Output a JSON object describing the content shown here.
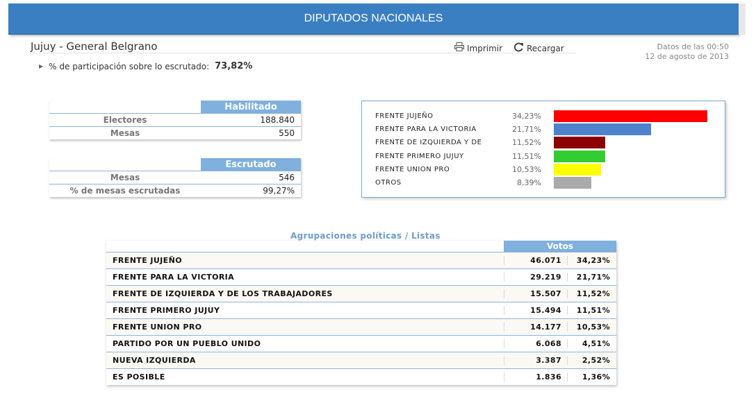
{
  "header": {
    "title": "DIPUTADOS NACIONALES"
  },
  "location": "Jujuy - General Belgrano",
  "toolbar": {
    "print_label": "Imprimir",
    "reload_label": "Recargar"
  },
  "timestamp": {
    "line1": "Datos de las 00:50",
    "line2": "12 de agosto de 2013"
  },
  "participation": {
    "label": "% de participación sobre lo escrutado:",
    "value": "73,82%"
  },
  "habilitado": {
    "header": "Habilitado",
    "rows": [
      {
        "label": "Electores",
        "value": "188.840"
      },
      {
        "label": "Mesas",
        "value": "550"
      }
    ]
  },
  "escrutado": {
    "header": "Escrutado",
    "rows": [
      {
        "label": "Mesas",
        "value": "546"
      },
      {
        "label": "% de mesas escrutadas",
        "value": "99,27%"
      }
    ]
  },
  "chart_data": {
    "type": "bar",
    "categories": [
      "FRENTE JUJEÑO",
      "FRENTE PARA LA VICTORIA",
      "FRENTE DE IZQUIERDA Y DE",
      "FRENTE PRIMERO JUJUY",
      "FRENTE UNION PRO",
      "OTROS"
    ],
    "values": [
      34.23,
      21.71,
      11.52,
      11.51,
      10.53,
      8.39
    ],
    "labels": [
      "34,23%",
      "21,71%",
      "11,52%",
      "11,51%",
      "10,53%",
      "8,39%"
    ],
    "colors": [
      "#ff0000",
      "#4e82cc",
      "#8b0000",
      "#33cc33",
      "#ffff00",
      "#aaaaaa"
    ]
  },
  "results": {
    "title": "Agrupaciones políticas / Listas",
    "votes_header": "Votos",
    "rows": [
      {
        "name": "FRENTE JUJEÑO",
        "votes": "46.071",
        "pct": "34,23%"
      },
      {
        "name": "FRENTE PARA LA VICTORIA",
        "votes": "29.219",
        "pct": "21,71%"
      },
      {
        "name": "FRENTE DE IZQUIERDA Y DE LOS TRABAJADORES",
        "votes": "15.507",
        "pct": "11,52%"
      },
      {
        "name": "FRENTE PRIMERO JUJUY",
        "votes": "15.494",
        "pct": "11,51%"
      },
      {
        "name": "FRENTE UNION PRO",
        "votes": "14.177",
        "pct": "10,53%"
      },
      {
        "name": "PARTIDO POR UN PUEBLO UNIDO",
        "votes": "6.068",
        "pct": "4,51%"
      },
      {
        "name": "NUEVA IZQUIERDA",
        "votes": "3.387",
        "pct": "2,52%"
      },
      {
        "name": "ES POSIBLE",
        "votes": "1.836",
        "pct": "1,36%"
      }
    ]
  }
}
